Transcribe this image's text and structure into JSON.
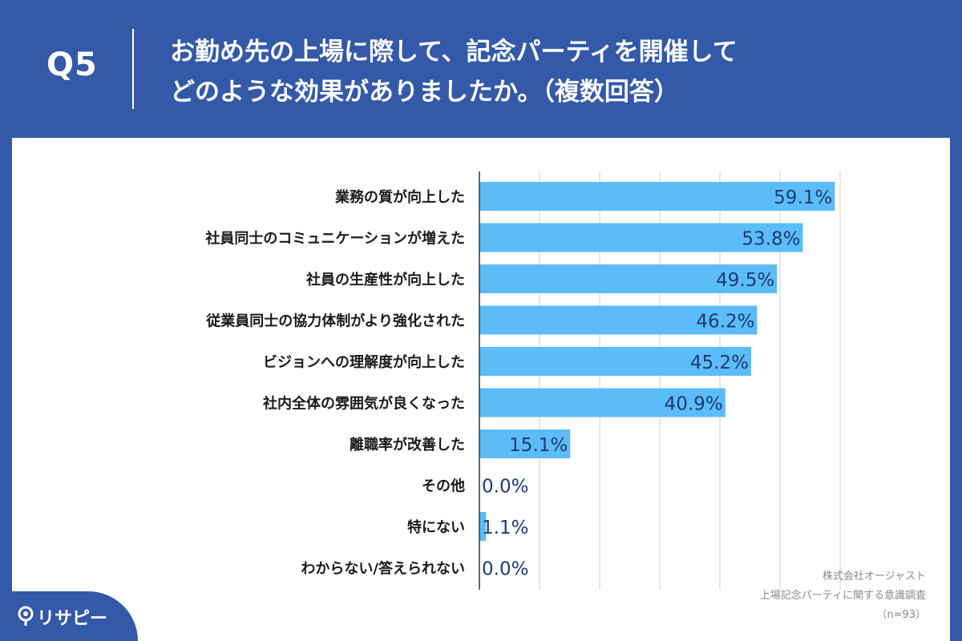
{
  "header": {
    "q_label": "Q5",
    "question_line1": "お勤め先の上場に際して、記念パーティを開催して",
    "question_line2": "どのような効果がありましたか。（複数回答）"
  },
  "source": {
    "company": "株式会社オージャスト",
    "survey": "上場記念パーティに関する意識調査",
    "sample": "（n=93）"
  },
  "logo": {
    "text": "リサピー"
  },
  "colors": {
    "bar": "#5bbcf8",
    "label": "#1a1a1a",
    "value": "#1b3a73",
    "header_bg": "#3359a8"
  },
  "chart_data": {
    "type": "bar",
    "orientation": "horizontal",
    "title": "お勤め先の上場に際して、記念パーティを開催してどのような効果がありましたか。（複数回答）",
    "categories": [
      "業務の質が向上した",
      "社員同士のコミュニケーションが増えた",
      "社員の生産性が向上した",
      "従業員同士の協力体制がより強化された",
      "ビジョンへの理解度が向上した",
      "社内全体の雰囲気が良くなった",
      "離職率が改善した",
      "その他",
      "特にない",
      "わからない/答えられない"
    ],
    "values": [
      59.1,
      53.8,
      49.5,
      46.2,
      45.2,
      40.9,
      15.1,
      0.0,
      1.1,
      0.0
    ],
    "value_labels": [
      "59.1%",
      "53.8%",
      "49.5%",
      "46.2%",
      "45.2%",
      "40.9%",
      "15.1%",
      "0.0%",
      "1.1%",
      "0.0%"
    ],
    "xlim": [
      0,
      60
    ],
    "grid": true
  }
}
